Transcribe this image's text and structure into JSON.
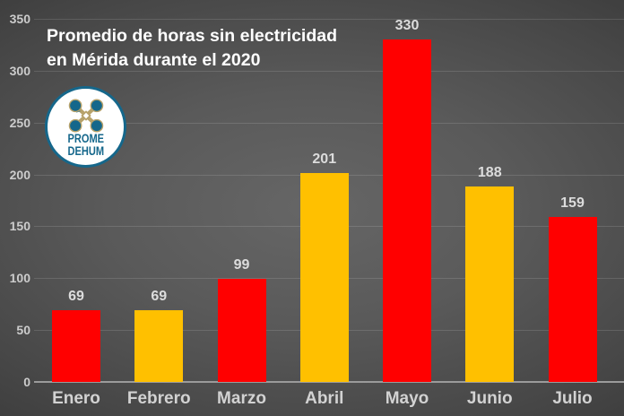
{
  "title": {
    "line1": "Promedio de horas sin electricidad",
    "line2": "en Mérida durante el 2020"
  },
  "logo": {
    "line1": "PROME",
    "line2": "DEHUM"
  },
  "chart_data": {
    "type": "bar",
    "title": "Promedio de horas sin electricidad en Mérida durante el 2020",
    "categories": [
      "Enero",
      "Febrero",
      "Marzo",
      "Abril",
      "Mayo",
      "Junio",
      "Julio"
    ],
    "values": [
      69,
      69,
      99,
      201,
      330,
      188,
      159
    ],
    "bar_colors": [
      "#FF0000",
      "#FFC000",
      "#FF0000",
      "#FFC000",
      "#FF0000",
      "#FFC000",
      "#FF0000"
    ],
    "xlabel": "",
    "ylabel": "",
    "ylim": [
      0,
      350
    ],
    "yticks": [
      0,
      50,
      100,
      150,
      200,
      250,
      300,
      350
    ],
    "grid": true,
    "legend": false,
    "data_labels": true,
    "colors": {
      "red_bar": "#FF0000",
      "gold_bar": "#FFC000",
      "background_center": "#5f5f5f",
      "background_edge": "#1d1d1d",
      "gridline": "#4d4d4d",
      "axis_line": "#9b9b9b",
      "tick_text": "#cccccc",
      "value_text": "#dcdcdc",
      "month_text": "#d2d2d2",
      "title_text": "#ffffff",
      "logo_teal": "#15678B",
      "logo_tan": "#B7A26A"
    }
  }
}
